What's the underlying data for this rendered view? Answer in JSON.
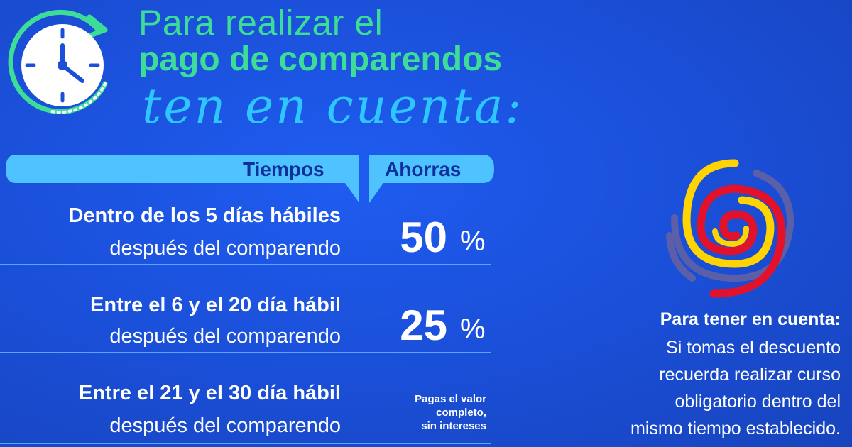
{
  "heading": {
    "line1": "Para realizar el",
    "line2": "pago de comparendos",
    "line3": "ten en cuenta:"
  },
  "table": {
    "header_tiempos": "Tiempos",
    "header_ahorras": "Ahorras",
    "rows": [
      {
        "main": "Dentro de los 5 días hábiles",
        "sub": "después del comparendo",
        "value": "50",
        "unit": "%"
      },
      {
        "main": "Entre el 6 y el 20 día hábil",
        "sub": "después del comparendo",
        "value": "25",
        "unit": "%"
      },
      {
        "main": "Entre el 21 y el 30 día hábil",
        "sub": "después del comparendo",
        "note_lines": [
          "Pagas el valor",
          "completo,",
          "sin intereses"
        ]
      }
    ]
  },
  "note": {
    "title": "Para tener en cuenta:",
    "lines": [
      "Si tomas el descuento",
      "recuerda realizar curso",
      "obligatorio dentro del",
      "mismo tiempo establecido."
    ]
  },
  "icons": {
    "clock": "clock-icon",
    "spiral": "colombia-spiral-logo"
  },
  "colors": {
    "background": "#1b4fd8",
    "accent_green": "#3ddc97",
    "accent_cyan": "#2ec6ff",
    "header_bar": "#4fc3ff",
    "header_text": "#0f2f9a",
    "logo_yellow": "#ffd400",
    "logo_red": "#e3122a",
    "logo_gray": "#5b5fa8"
  }
}
